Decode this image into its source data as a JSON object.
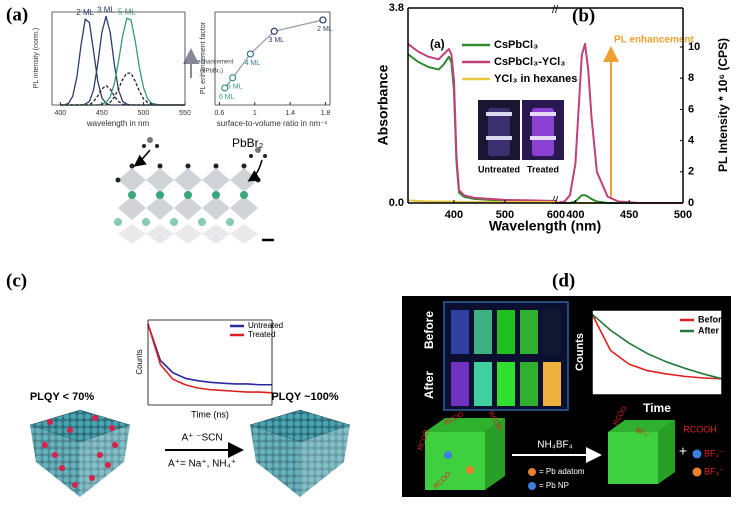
{
  "figure": {
    "panel_labels": [
      "(a)",
      "(b)",
      "(c)",
      "(d)"
    ],
    "a": {
      "precursor": "PbBr₂"
    },
    "b": {
      "inset_label": "(a)",
      "photo_labels": [
        "Untreated",
        "Treated"
      ]
    },
    "c": {
      "before": "PLQY < 70%",
      "after": "PLQY ~100%",
      "reagent": "A⁺ ⁻SCN",
      "cation": "A⁺= Na⁺, NH₄⁺"
    },
    "d": {
      "row_labels": [
        "Before",
        "After"
      ],
      "reagent": "NH₄BF₄",
      "key": [
        "= Pb adatom",
        "= Pb NP"
      ],
      "products": [
        "RCOOH",
        "BF₄⁻",
        "BF₄⁻"
      ],
      "left_cube_ligands": [
        "RCOO",
        "RCOO",
        "RCOO",
        "RCOO"
      ],
      "right_cube_ligands": [
        "RCOO",
        "BF₄⁻"
      ]
    }
  },
  "chart_data": [
    {
      "type": "line",
      "xlabel": "wavelength in nm",
      "ylabel": "PL intensity (norm.)",
      "annotation": [
        "enhancement",
        "(+PbBr₂)"
      ],
      "xlim": [
        390,
        550
      ],
      "xticks": [
        400,
        450,
        500,
        550
      ],
      "ylim": [
        0,
        1.05
      ],
      "label_peaks": true,
      "x": [
        400,
        405,
        410,
        415,
        420,
        425,
        430,
        435,
        440,
        445,
        450,
        455,
        460,
        465,
        470,
        475,
        480,
        485,
        490,
        495,
        500,
        505,
        510,
        515,
        520,
        525,
        530,
        535,
        540,
        545,
        550
      ],
      "series": [
        {
          "name": "2 ML",
          "color": "#2c3e6b",
          "values": [
            0,
            0,
            0.02,
            0.1,
            0.32,
            0.68,
            0.97,
            0.93,
            0.61,
            0.27,
            0.08,
            0.02,
            0,
            0,
            0,
            0,
            0,
            0,
            0,
            0,
            0,
            0,
            0,
            0,
            0,
            0,
            0,
            0,
            0,
            0,
            0
          ]
        },
        {
          "name": "3 ML",
          "color": "#2c3e6b",
          "values": [
            0,
            0,
            0,
            0,
            0,
            0,
            0.01,
            0.04,
            0.17,
            0.46,
            0.82,
            1,
            0.82,
            0.46,
            0.17,
            0.04,
            0.01,
            0,
            0,
            0,
            0,
            0,
            0,
            0,
            0,
            0,
            0,
            0,
            0,
            0,
            0
          ]
        },
        {
          "name": "5 ML",
          "color": "#3a9a7a",
          "values": [
            0,
            0,
            0,
            0,
            0,
            0,
            0,
            0,
            0,
            0,
            0.01,
            0.03,
            0.09,
            0.24,
            0.49,
            0.78,
            0.98,
            0.96,
            0.73,
            0.43,
            0.2,
            0.07,
            0.02,
            0.01,
            0,
            0,
            0,
            0,
            0,
            0,
            0
          ]
        },
        {
          "color": "#222222",
          "dash": true,
          "values": [
            0,
            0,
            0,
            0,
            0,
            0,
            0,
            0,
            0.04,
            0.1,
            0.18,
            0.22,
            0.18,
            0.1,
            0.04,
            0.01,
            0,
            0,
            0,
            0,
            0,
            0,
            0,
            0,
            0,
            0,
            0,
            0,
            0,
            0,
            0
          ]
        },
        {
          "color": "#222222",
          "dash": true,
          "values": [
            0,
            0,
            0,
            0,
            0,
            0,
            0,
            0,
            0,
            0,
            0,
            0,
            0.03,
            0.09,
            0.18,
            0.29,
            0.36,
            0.36,
            0.27,
            0.16,
            0.07,
            0.03,
            0.01,
            0,
            0,
            0,
            0,
            0,
            0,
            0,
            0
          ]
        }
      ]
    },
    {
      "type": "line",
      "xlabel": "surface-to-volume ratio in nm⁻¹",
      "ylabel": "PL enhancement factor",
      "xlim": [
        0.55,
        1.85
      ],
      "xticks": [
        0.6,
        1,
        1.4,
        1.8
      ],
      "ylim": [
        0,
        8.2
      ],
      "markers": true,
      "line_color": "#9aa0ad",
      "x": [
        0.66,
        0.75,
        0.95,
        1.22,
        1.77
      ],
      "values": [
        1.5,
        2.4,
        4.5,
        6.5,
        7.5
      ],
      "point_labels": [
        "6 ML",
        "5 ML",
        "4 ML",
        "3 ML",
        "2 ML"
      ],
      "point_colors": [
        "#3a9a7a",
        "#3a9a7a",
        "#2f7f8a",
        "#2c3e6b",
        "#2c3e6b"
      ]
    },
    {
      "type": "line",
      "xlabel": "Wavelength (nm)",
      "ylabel": "Absorbance",
      "legend": "upper left",
      "xlim": [
        310,
        600
      ],
      "xticks": [
        400,
        500,
        600
      ],
      "ylim": [
        0,
        3.8
      ],
      "yticks": [
        {
          "value": 0,
          "label": "0.0"
        },
        3.8
      ],
      "x": [
        310,
        330,
        350,
        370,
        380,
        390,
        395,
        400,
        405,
        410,
        420,
        440,
        470,
        500,
        550,
        600
      ],
      "series": [
        {
          "name": "CsPbCl₃",
          "color": "#2e8b2e",
          "values": [
            2.9,
            2.75,
            2.65,
            2.6,
            2.7,
            2.85,
            2.75,
            2.2,
            0.8,
            0.2,
            0.12,
            0.08,
            0.06,
            0.05,
            0.04,
            0.03
          ]
        },
        {
          "name": "CsPbCl₃-YCl₃",
          "color": "#c0407a",
          "values": [
            3.1,
            2.95,
            2.85,
            2.8,
            2.9,
            3.0,
            2.9,
            2.4,
            0.9,
            0.25,
            0.15,
            0.1,
            0.08,
            0.06,
            0.05,
            0.04
          ]
        },
        {
          "name": "YCl₃ in hexanes",
          "color": "#e8c840",
          "values": [
            0.05,
            0.04,
            0.03,
            0.03,
            0.03,
            0.03,
            0.03,
            0.03,
            0.02,
            0.02,
            0.02,
            0.02,
            0.02,
            0.02,
            0.02,
            0.02
          ]
        }
      ]
    },
    {
      "type": "line",
      "ylabel": "PL Intensity * 10⁶ (CPS)",
      "y_axis": "right",
      "annotation": "PL enhancement",
      "xlim": [
        382,
        500
      ],
      "xticks": [
        400,
        450,
        500
      ],
      "ylim": [
        0,
        12.5
      ],
      "yticks": [
        0,
        2,
        4,
        6,
        8,
        10
      ],
      "x": [
        382,
        390,
        395,
        400,
        403,
        406,
        409,
        412,
        415,
        420,
        430,
        440,
        460,
        500
      ],
      "series": [
        {
          "color": "#e8c840",
          "values": [
            0,
            0,
            0,
            0,
            0,
            0,
            0,
            0,
            0,
            0,
            0,
            0,
            0,
            0
          ]
        },
        {
          "color": "#2e8b2e",
          "values": [
            0,
            0,
            0,
            0.1,
            0.3,
            0.5,
            0.5,
            0.4,
            0.25,
            0.1,
            0,
            0,
            0,
            0
          ]
        },
        {
          "color": "#c0407a",
          "values": [
            0,
            0.1,
            0.5,
            2.5,
            6,
            9.5,
            10.2,
            8.5,
            5.5,
            2,
            0.4,
            0.1,
            0,
            0
          ]
        }
      ]
    },
    {
      "type": "line",
      "xlabel": "Time (ns)",
      "ylabel": "Counts",
      "legend": "upper right",
      "xlim": [
        0,
        10
      ],
      "ylim": [
        0,
        1.05
      ],
      "x": [
        0,
        1,
        2,
        3,
        4,
        5,
        6,
        7,
        8,
        9,
        10
      ],
      "series": [
        {
          "name": "Untreated",
          "color": "#2a2aa0",
          "values": [
            1,
            0.55,
            0.4,
            0.33,
            0.3,
            0.28,
            0.27,
            0.26,
            0.26,
            0.25,
            0.25
          ]
        },
        {
          "name": "Treated",
          "color": "#e02020",
          "values": [
            1,
            0.5,
            0.32,
            0.25,
            0.21,
            0.19,
            0.18,
            0.17,
            0.16,
            0.16,
            0.15
          ]
        }
      ]
    },
    {
      "type": "line",
      "xlabel": "Time",
      "ylabel": "Counts",
      "legend": "upper right",
      "xlim": [
        0,
        7
      ],
      "ylim": [
        0,
        1.05
      ],
      "x": [
        0,
        1,
        2,
        3,
        4,
        5,
        6,
        7
      ],
      "series": [
        {
          "name": "Before",
          "color": "#e02020",
          "values": [
            1,
            0.55,
            0.38,
            0.3,
            0.26,
            0.23,
            0.21,
            0.2
          ]
        },
        {
          "name": "After",
          "color": "#1f7a3a",
          "values": [
            1,
            0.8,
            0.64,
            0.51,
            0.41,
            0.33,
            0.26,
            0.2
          ]
        }
      ]
    }
  ]
}
